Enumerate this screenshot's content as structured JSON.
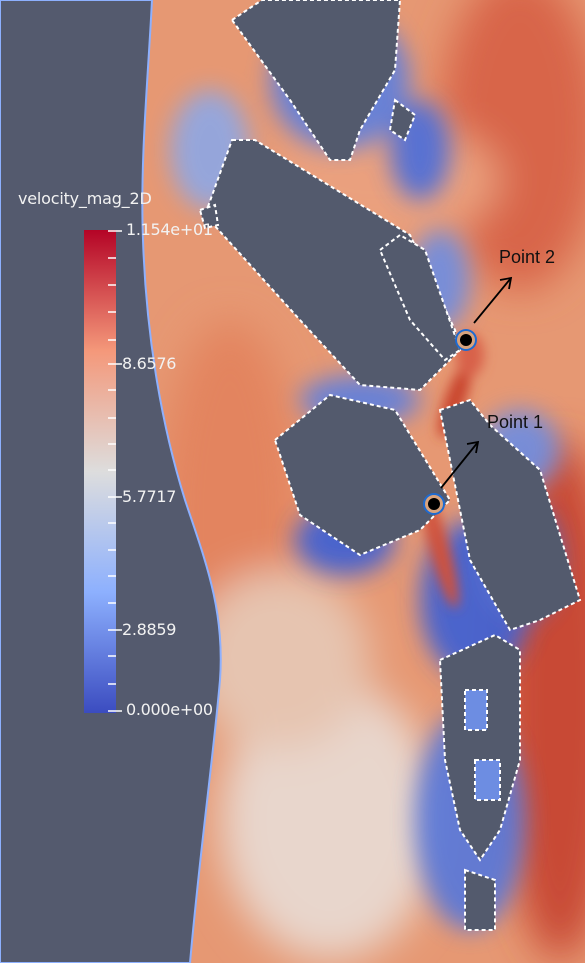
{
  "figure": {
    "colorbar": {
      "title": "velocity_mag_2D",
      "max_label": "1.154e+01",
      "tick_1": "8.6576",
      "tick_2": "5.7717",
      "tick_3": "2.8859",
      "min_label": "0.000e+00",
      "max_value": 11.54,
      "min_value": 0.0,
      "colormap": [
        "#3b4cc0",
        "#8db0fe",
        "#dddddd",
        "#f4987a",
        "#b40426"
      ]
    },
    "annotations": {
      "point1_label": "Point 1",
      "point2_label": "Point 2"
    },
    "colors": {
      "land": "#545a6e",
      "high_velocity": "#d05a3e",
      "low_velocity": "#3b5fd6",
      "building_outline": "#ffffff"
    }
  }
}
